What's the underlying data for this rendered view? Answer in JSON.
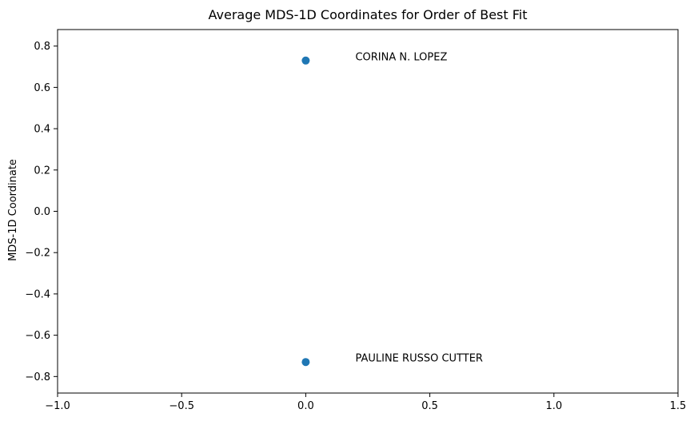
{
  "chart_data": {
    "type": "scatter",
    "title": "Average MDS-1D Coordinates for Order of Best Fit",
    "xlabel": "",
    "ylabel": "MDS-1D Coordinate",
    "xlim": [
      -1.0,
      1.5
    ],
    "ylim": [
      -0.88,
      0.88
    ],
    "x_ticks": [
      -1.0,
      -0.5,
      0.0,
      0.5,
      1.0,
      1.5
    ],
    "x_tick_labels": [
      "−1.0",
      "−0.5",
      "0.0",
      "0.5",
      "1.0",
      "1.5"
    ],
    "y_ticks": [
      0.8,
      0.6,
      0.4,
      0.2,
      0.0,
      -0.2,
      -0.4,
      -0.6,
      -0.8
    ],
    "y_tick_labels": [
      "0.8",
      "0.6",
      "0.4",
      "0.2",
      "0.0",
      "−0.2",
      "−0.4",
      "−0.6",
      "−0.8"
    ],
    "grid": false,
    "legend": "none",
    "points": [
      {
        "x": 0.0,
        "y": 0.73,
        "label": "CORINA N. LOPEZ"
      },
      {
        "x": 0.0,
        "y": -0.73,
        "label": "PAULINE RUSSO CUTTER"
      }
    ],
    "colors": {
      "point": "#1f77b4",
      "axis": "#000000",
      "background": "#ffffff"
    }
  }
}
